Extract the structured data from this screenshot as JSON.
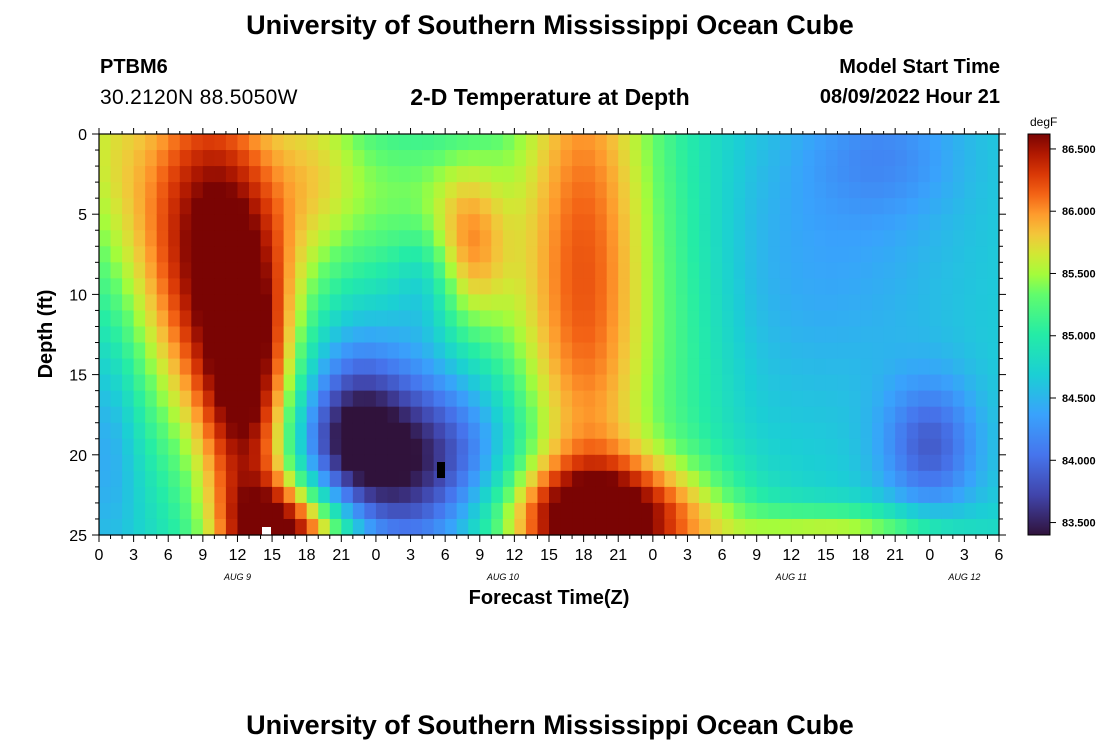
{
  "header": {
    "title_top": "University of Southern Mississippi Ocean Cube",
    "station_name": "PTBM6",
    "station_coords": "30.2120N  88.5050W",
    "chart_title": "2-D Temperature at Depth",
    "start_label": "Model Start Time",
    "start_value": "08/09/2022 Hour 21"
  },
  "footer": {
    "title_bottom": "University of Southern Mississippi Ocean Cube"
  },
  "chart_data": {
    "type": "heatmap",
    "title": "2-D Temperature at Depth",
    "xlabel": "Forecast Time(Z)",
    "ylabel": "Depth (ft)",
    "y_range": [
      0,
      25
    ],
    "y_ticks": [
      0,
      5,
      10,
      15,
      20,
      25
    ],
    "y_tick_labels": [
      "0",
      "5",
      "10",
      "15",
      "20",
      "25"
    ],
    "x_range_hours": [
      0,
      78
    ],
    "x_tick_step_hours": 3,
    "x_tick_labels": [
      "0",
      "3",
      "6",
      "9",
      "12",
      "15",
      "18",
      "21",
      "0",
      "3",
      "6",
      "9",
      "12",
      "15",
      "18",
      "21",
      "0",
      "3",
      "6",
      "9",
      "12",
      "15",
      "18",
      "21",
      "0",
      "3",
      "6"
    ],
    "date_labels": [
      {
        "label": "AUG 9",
        "hour": 12
      },
      {
        "label": "AUG 10",
        "hour": 35
      },
      {
        "label": "AUG 11",
        "hour": 60
      },
      {
        "label": "AUG 12",
        "hour": 75
      }
    ],
    "colorbar": {
      "unit": "degF",
      "min": 83.4,
      "max": 86.62,
      "tick_values": [
        86.5,
        86.0,
        85.5,
        85.0,
        84.5,
        84.0,
        83.5
      ],
      "tick_labels": [
        "86.500",
        "86.000",
        "85.500",
        "85.000",
        "84.500",
        "84.000",
        "83.500"
      ]
    },
    "field": {
      "base_temp": 84.7,
      "features": [
        {
          "t": 0,
          "d": 0,
          "amp": 0.6,
          "st": 3,
          "sd": 6
        },
        {
          "t": 9,
          "d": 6,
          "amp": 1.8,
          "st": 5,
          "sd": 9
        },
        {
          "t": 13,
          "d": 17,
          "amp": 1.6,
          "st": 3,
          "sd": 8
        },
        {
          "t": 17,
          "d": 25,
          "amp": 1.8,
          "st": 4,
          "sd": 2.5
        },
        {
          "t": 1,
          "d": 19,
          "amp": -0.4,
          "st": 2,
          "sd": 5
        },
        {
          "t": 19,
          "d": 2,
          "amp": 0.7,
          "st": 3,
          "sd": 5
        },
        {
          "t": 26,
          "d": 4,
          "amp": 0.6,
          "st": 4,
          "sd": 4
        },
        {
          "t": 26,
          "d": 20.5,
          "amp": -1.3,
          "st": 7,
          "sd": 4
        },
        {
          "t": 22,
          "d": 18,
          "amp": -0.6,
          "st": 3,
          "sd": 4
        },
        {
          "t": 32,
          "d": 7,
          "amp": 1.0,
          "st": 2.5,
          "sd": 4
        },
        {
          "t": 28.5,
          "d": 9,
          "amp": -0.4,
          "st": 2,
          "sd": 2.5
        },
        {
          "t": 42,
          "d": 9,
          "amp": 1.5,
          "st": 5,
          "sd": 16
        },
        {
          "t": 44,
          "d": 24,
          "amp": 1.6,
          "st": 7,
          "sd": 2.5
        },
        {
          "t": 63,
          "d": 8,
          "amp": -0.3,
          "st": 8,
          "sd": 6
        },
        {
          "t": 68,
          "d": 1,
          "amp": -0.4,
          "st": 5,
          "sd": 3
        },
        {
          "t": 72,
          "d": 19.5,
          "amp": -0.8,
          "st": 3,
          "sd": 3
        },
        {
          "t": 64,
          "d": 25,
          "amp": 0.9,
          "st": 7,
          "sd": 1.2
        },
        {
          "t": 52,
          "d": 12,
          "amp": 0.2,
          "st": 3,
          "sd": 10
        }
      ]
    }
  }
}
